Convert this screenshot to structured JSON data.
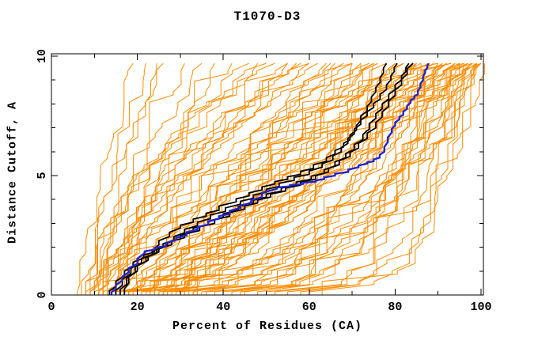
{
  "figure": {
    "title": "T1070-D3",
    "xlabel": "Percent of Residues (CA)",
    "ylabel": "Distance Cutoff, A"
  },
  "chart_data": {
    "type": "line",
    "title": "T1070-D3",
    "xlabel": "Percent of Residues (CA)",
    "ylabel": "Distance Cutoff, A",
    "xlim": [
      0,
      100
    ],
    "ylim": [
      0,
      10
    ],
    "x_major_ticks": [
      0,
      20,
      40,
      60,
      80,
      100
    ],
    "x_minor_ticks": [
      10,
      30,
      50,
      70,
      90
    ],
    "y_major_ticks": [
      0,
      5,
      10
    ],
    "y_minor_ticks": [
      1,
      2,
      3,
      4,
      6,
      7,
      8,
      9
    ],
    "grid": false,
    "legend": "none",
    "curve_top_value": 9.7,
    "colors": {
      "ensemble": "#ff8c00",
      "selected": "#000000",
      "best": "#2424cc",
      "axis": "#000000",
      "background": "#ffffff"
    },
    "series": [
      {
        "name": "best-model-blue",
        "color_key": "best",
        "width": 2.4,
        "points": [
          [
            14,
            0
          ],
          [
            15,
            0.25
          ],
          [
            16.5,
            0.6
          ],
          [
            18,
            0.95
          ],
          [
            20,
            1.3
          ],
          [
            21.7,
            1.75
          ],
          [
            24,
            1.9
          ],
          [
            26.7,
            2.05
          ],
          [
            29,
            2.3
          ],
          [
            31.5,
            2.5
          ],
          [
            34,
            2.75
          ],
          [
            36.5,
            2.95
          ],
          [
            39,
            3.2
          ],
          [
            41.5,
            3.4
          ],
          [
            44,
            3.65
          ],
          [
            46.5,
            3.85
          ],
          [
            49,
            4.1
          ],
          [
            52.5,
            4.45
          ],
          [
            55.5,
            4.55
          ],
          [
            58.5,
            4.65
          ],
          [
            61.5,
            4.75
          ],
          [
            63.5,
            4.85
          ],
          [
            66,
            5.0
          ],
          [
            69.1,
            5.15
          ],
          [
            71.5,
            5.35
          ],
          [
            73.5,
            5.5
          ],
          [
            75,
            5.6
          ],
          [
            76.4,
            5.75
          ],
          [
            77.5,
            6.0
          ],
          [
            78.3,
            6.4
          ],
          [
            79.2,
            6.8
          ],
          [
            80,
            7.1
          ],
          [
            81,
            7.35
          ],
          [
            81.9,
            7.55
          ],
          [
            82.8,
            7.8
          ],
          [
            83.6,
            8.05
          ],
          [
            84.5,
            8.25
          ],
          [
            85.3,
            8.4
          ],
          [
            85.9,
            8.7
          ],
          [
            86.5,
            9.0
          ],
          [
            87,
            9.3
          ],
          [
            87.5,
            9.5
          ],
          [
            87.8,
            9.7
          ]
        ]
      },
      {
        "name": "selected-model-black-1",
        "color_key": "selected",
        "width": 1.8,
        "points": [
          [
            13.5,
            0
          ],
          [
            15,
            0.35
          ],
          [
            17,
            0.8
          ],
          [
            19,
            1.2
          ],
          [
            21.5,
            1.55
          ],
          [
            24,
            1.8
          ],
          [
            25,
            2.1
          ],
          [
            27.5,
            2.45
          ],
          [
            30,
            2.8
          ],
          [
            33,
            3.05
          ],
          [
            36,
            3.3
          ],
          [
            39,
            3.55
          ],
          [
            43,
            3.9
          ],
          [
            46,
            4.15
          ],
          [
            49,
            4.4
          ],
          [
            52,
            4.65
          ],
          [
            55,
            4.85
          ],
          [
            58,
            5.05
          ],
          [
            61,
            5.3
          ],
          [
            64,
            5.6
          ],
          [
            66,
            5.9
          ],
          [
            68,
            6.2
          ],
          [
            69.5,
            6.5
          ],
          [
            71,
            6.9
          ],
          [
            72,
            7.3
          ],
          [
            73.5,
            7.7
          ],
          [
            74.5,
            8.1
          ],
          [
            75.5,
            8.5
          ],
          [
            76.5,
            8.9
          ],
          [
            77.3,
            9.3
          ],
          [
            78,
            9.7
          ]
        ]
      },
      {
        "name": "selected-model-black-2",
        "color_key": "selected",
        "width": 1.8,
        "points": [
          [
            15,
            0
          ],
          [
            16.5,
            0.4
          ],
          [
            18.5,
            0.9
          ],
          [
            21,
            1.35
          ],
          [
            23.5,
            1.7
          ],
          [
            26,
            2.0
          ],
          [
            28.5,
            2.3
          ],
          [
            31,
            2.6
          ],
          [
            34,
            2.9
          ],
          [
            37,
            3.2
          ],
          [
            40.5,
            3.5
          ],
          [
            44,
            3.8
          ],
          [
            47,
            4.05
          ],
          [
            50,
            4.3
          ],
          [
            53,
            4.55
          ],
          [
            56.5,
            4.8
          ],
          [
            60,
            5.05
          ],
          [
            63,
            5.35
          ],
          [
            65.5,
            5.65
          ],
          [
            67.5,
            6.0
          ],
          [
            69,
            6.35
          ],
          [
            70.5,
            6.75
          ],
          [
            72,
            7.15
          ],
          [
            73.5,
            7.5
          ],
          [
            75,
            7.85
          ],
          [
            76.5,
            8.2
          ],
          [
            78,
            8.6
          ],
          [
            79,
            9.0
          ],
          [
            79.8,
            9.35
          ],
          [
            80.5,
            9.7
          ]
        ]
      },
      {
        "name": "selected-model-black-3",
        "color_key": "selected",
        "width": 1.8,
        "points": [
          [
            16,
            0
          ],
          [
            17.5,
            0.45
          ],
          [
            19.5,
            0.95
          ],
          [
            22,
            1.4
          ],
          [
            24.5,
            1.75
          ],
          [
            27,
            2.05
          ],
          [
            30,
            2.35
          ],
          [
            33,
            2.65
          ],
          [
            36.5,
            2.95
          ],
          [
            40,
            3.25
          ],
          [
            43.5,
            3.55
          ],
          [
            47,
            3.85
          ],
          [
            50,
            4.1
          ],
          [
            53.5,
            4.35
          ],
          [
            57,
            4.6
          ],
          [
            60.5,
            4.85
          ],
          [
            63.5,
            5.1
          ],
          [
            66,
            5.4
          ],
          [
            68.5,
            5.75
          ],
          [
            70.5,
            6.1
          ],
          [
            72.5,
            6.5
          ],
          [
            74,
            6.95
          ],
          [
            75.5,
            7.4
          ],
          [
            77,
            7.8
          ],
          [
            78.5,
            8.2
          ],
          [
            80,
            8.6
          ],
          [
            81.5,
            9.0
          ],
          [
            82.5,
            9.35
          ],
          [
            83.2,
            9.7
          ]
        ]
      },
      {
        "name": "selected-model-black-4",
        "color_key": "selected",
        "width": 1.8,
        "points": [
          [
            17,
            0
          ],
          [
            18,
            0.5
          ],
          [
            20,
            1.0
          ],
          [
            22.5,
            1.45
          ],
          [
            25,
            1.8
          ],
          [
            28,
            2.1
          ],
          [
            31,
            2.4
          ],
          [
            34.5,
            2.7
          ],
          [
            38,
            3.0
          ],
          [
            41.5,
            3.3
          ],
          [
            45,
            3.6
          ],
          [
            48,
            3.85
          ],
          [
            51,
            4.1
          ],
          [
            54.5,
            4.35
          ],
          [
            58,
            4.6
          ],
          [
            61.5,
            4.85
          ],
          [
            64.5,
            5.15
          ],
          [
            67,
            5.45
          ],
          [
            69.5,
            5.8
          ],
          [
            71.5,
            6.15
          ],
          [
            73.5,
            6.55
          ],
          [
            75.5,
            7.0
          ],
          [
            77,
            7.45
          ],
          [
            78.5,
            7.9
          ],
          [
            80,
            8.35
          ],
          [
            81.5,
            8.8
          ],
          [
            82.8,
            9.25
          ],
          [
            84.2,
            9.7
          ]
        ]
      }
    ],
    "ensemble_lines": [
      [
        6,
        19,
        1.2,
        11
      ],
      [
        7,
        22,
        1.05,
        12
      ],
      [
        8,
        26,
        1.3,
        13
      ],
      [
        9,
        31,
        1.15,
        14
      ],
      [
        10,
        35,
        1.4,
        15
      ],
      [
        8,
        24,
        1.0,
        16
      ],
      [
        11,
        42,
        1.25,
        17
      ],
      [
        12,
        38,
        1.1,
        18
      ],
      [
        9,
        46,
        1.6,
        21
      ],
      [
        10,
        50,
        1.8,
        22
      ],
      [
        12,
        55,
        1.5,
        23
      ],
      [
        14,
        60,
        1.7,
        24
      ],
      [
        11,
        52,
        2.0,
        25
      ],
      [
        13,
        58,
        1.45,
        26
      ],
      [
        15,
        64,
        1.6,
        27
      ],
      [
        16,
        57,
        1.9,
        28
      ],
      [
        12,
        48,
        1.4,
        29
      ],
      [
        17,
        62,
        1.55,
        30
      ],
      [
        8,
        55,
        1.0,
        31
      ],
      [
        9,
        60,
        1.1,
        32
      ],
      [
        10,
        65,
        0.95,
        33
      ],
      [
        11,
        70,
        1.2,
        34
      ],
      [
        12,
        75,
        1.05,
        35
      ],
      [
        13,
        68,
        0.9,
        36
      ],
      [
        14,
        72,
        1.15,
        37
      ],
      [
        15,
        78,
        1.0,
        38
      ],
      [
        16,
        82,
        1.1,
        39
      ],
      [
        17,
        76,
        0.95,
        40
      ],
      [
        18,
        85,
        1.2,
        41
      ],
      [
        19,
        80,
        1.0,
        42
      ],
      [
        20,
        88,
        1.05,
        43
      ],
      [
        21,
        84,
        0.9,
        44
      ],
      [
        22,
        90,
        1.1,
        45
      ],
      [
        23,
        86,
        1.0,
        46
      ],
      [
        24,
        92,
        1.15,
        47
      ],
      [
        25,
        89,
        0.95,
        48
      ],
      [
        26,
        94,
        1.05,
        49
      ],
      [
        27,
        91,
        1.1,
        50
      ],
      [
        28,
        96,
        1.0,
        51
      ],
      [
        29,
        93,
        0.9,
        52
      ],
      [
        30,
        98,
        1.05,
        53
      ],
      [
        31,
        95,
        1.1,
        54
      ],
      [
        32,
        100,
        1.0,
        55
      ],
      [
        33,
        97,
        0.95,
        56
      ],
      [
        34,
        99,
        1.05,
        57
      ],
      [
        20,
        70,
        1.25,
        58
      ],
      [
        22,
        75,
        1.15,
        59
      ],
      [
        24,
        80,
        1.2,
        60
      ],
      [
        16,
        66,
        1.3,
        61
      ],
      [
        18,
        74,
        1.25,
        62
      ],
      [
        26,
        85,
        1.2,
        63
      ],
      [
        28,
        88,
        1.3,
        64
      ],
      [
        30,
        92,
        1.25,
        65
      ],
      [
        12,
        70,
        0.45,
        71
      ],
      [
        14,
        75,
        0.4,
        72
      ],
      [
        16,
        80,
        0.5,
        73
      ],
      [
        18,
        85,
        0.35,
        74
      ],
      [
        20,
        88,
        0.45,
        75
      ],
      [
        22,
        90,
        0.4,
        76
      ],
      [
        24,
        92,
        0.5,
        77
      ],
      [
        26,
        94,
        0.35,
        78
      ],
      [
        28,
        95,
        0.45,
        79
      ],
      [
        30,
        96,
        0.4,
        80
      ],
      [
        15,
        72,
        0.55,
        81
      ],
      [
        17,
        78,
        0.5,
        82
      ],
      [
        19,
        82,
        0.6,
        83
      ],
      [
        21,
        86,
        0.55,
        84
      ],
      [
        23,
        89,
        0.6,
        85
      ],
      [
        25,
        91,
        0.5,
        86
      ],
      [
        27,
        93,
        0.55,
        87
      ],
      [
        29,
        97,
        0.45,
        88
      ],
      [
        31,
        98,
        0.5,
        89
      ],
      [
        33,
        99,
        0.6,
        90
      ],
      [
        35,
        100,
        0.5,
        91
      ],
      [
        38,
        96,
        0.45,
        92
      ],
      [
        40,
        98,
        0.4,
        93
      ],
      [
        42,
        99,
        0.5,
        94
      ],
      [
        45,
        100,
        0.45,
        95
      ],
      [
        36,
        90,
        0.3,
        96
      ],
      [
        44,
        94,
        0.35,
        97
      ],
      [
        48,
        99,
        0.4,
        98
      ],
      [
        50,
        98,
        0.35,
        99
      ],
      [
        55,
        100,
        0.3,
        100
      ],
      [
        52,
        88,
        0.25,
        101
      ],
      [
        58,
        95,
        0.3,
        102
      ],
      [
        60,
        97,
        0.25,
        103
      ],
      [
        63,
        99,
        0.3,
        104
      ]
    ]
  }
}
